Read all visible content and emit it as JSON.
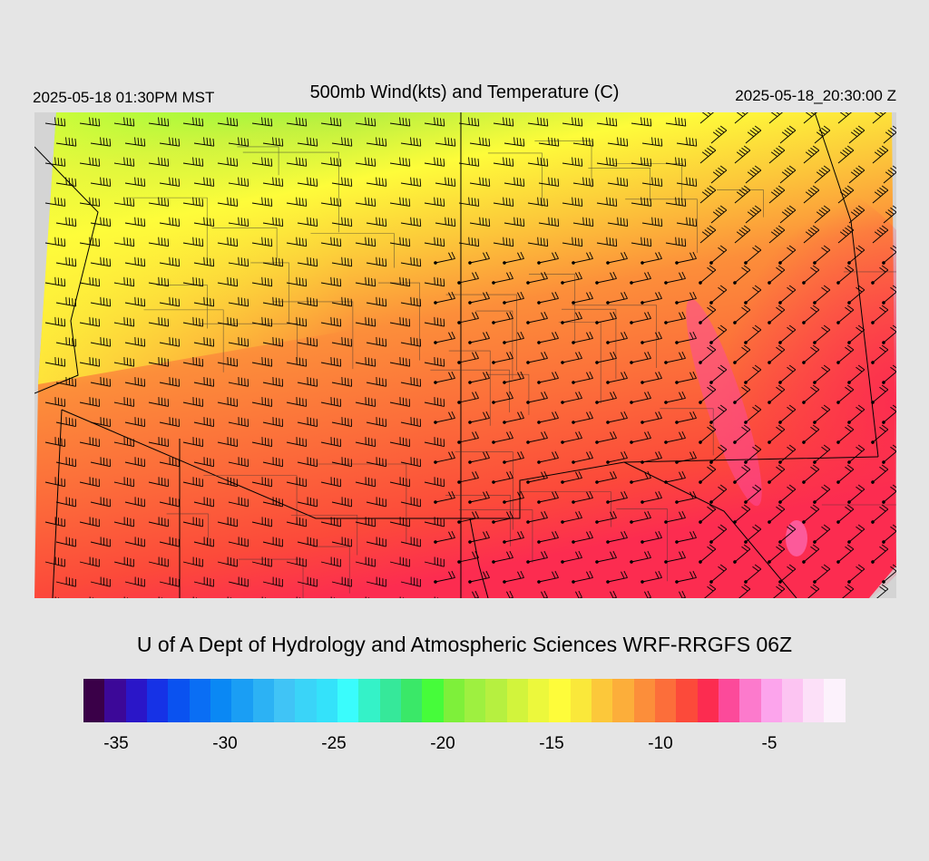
{
  "header": {
    "local_time": "2025-05-18 01:30PM MST",
    "title": "500mb Wind(kts) and Temperature (C)",
    "utc_time": "2025-05-18_20:30:00 Z"
  },
  "footer": {
    "credit": "U of A Dept of Hydrology and Atmospheric Sciences WRF-RRGFS 06Z"
  },
  "legend": {
    "units": "C",
    "min": -36,
    "max": -1,
    "tick_labels": [
      "-35",
      "-30",
      "-25",
      "-20",
      "-15",
      "-10",
      "-5"
    ],
    "tick_values": [
      -35,
      -30,
      -25,
      -20,
      -15,
      -10,
      -5
    ],
    "colors": [
      "#3a0048",
      "#3c0898",
      "#2a16c8",
      "#1632e6",
      "#0a52f0",
      "#0a6ef4",
      "#0a88f4",
      "#1a9ef4",
      "#2cb2f4",
      "#40c4f6",
      "#3ad4f8",
      "#34e2fa",
      "#3afcfc",
      "#34f2c8",
      "#36e89a",
      "#3ae868",
      "#46fc3a",
      "#7ef03a",
      "#9ef040",
      "#b6f040",
      "#d2f43c",
      "#ecf83c",
      "#fefc3a",
      "#fae83a",
      "#fcc83a",
      "#fcae3a",
      "#fc8e3a",
      "#fc6e3a",
      "#fc4a3a",
      "#fc2c50",
      "#fc4a9a",
      "#fc7acc",
      "#fca4ec",
      "#fcc4f2",
      "#fce0f8",
      "#fcf2fc"
    ]
  },
  "map": {
    "wind_field": "500mb wind barbs",
    "temperature_field": "500mb temperature (C)"
  }
}
